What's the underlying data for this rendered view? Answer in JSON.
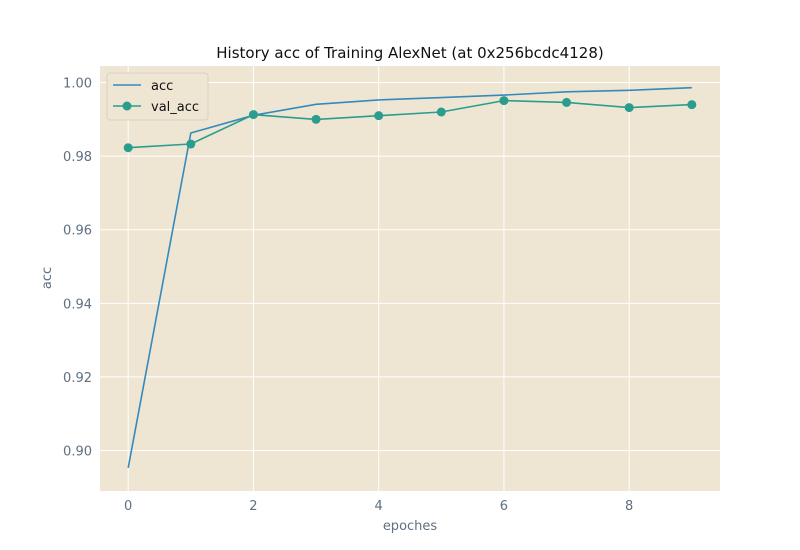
{
  "chart_data": {
    "type": "line",
    "title": "History acc of Training AlexNet (at 0x256bcdc4128)",
    "xlabel": "epoches",
    "ylabel": "acc",
    "x": [
      0,
      1,
      2,
      3,
      4,
      5,
      6,
      7,
      8,
      9
    ],
    "xticks": [
      "0",
      "2",
      "4",
      "6",
      "8"
    ],
    "yticks": [
      "0.90",
      "0.92",
      "0.94",
      "0.96",
      "0.98",
      "1.00"
    ],
    "xlim": [
      -0.45,
      9.45
    ],
    "ylim": [
      0.889,
      1.0045
    ],
    "grid": true,
    "legend_position": "top-left",
    "series": [
      {
        "name": "acc",
        "values": [
          0.8953,
          0.9863,
          0.9911,
          0.9941,
          0.9953,
          0.9959,
          0.9966,
          0.9975,
          0.9979,
          0.9986
        ],
        "color": "#348ABD",
        "marker": false
      },
      {
        "name": "val_acc",
        "values": [
          0.9823,
          0.9833,
          0.9913,
          0.99,
          0.991,
          0.992,
          0.9951,
          0.9946,
          0.9932,
          0.994
        ],
        "color": "#2A9D8F",
        "marker": true
      }
    ],
    "colors": {
      "plot_background": "#EEE6D3",
      "grid": "#FFFFFF",
      "text": "#5F7080"
    }
  }
}
